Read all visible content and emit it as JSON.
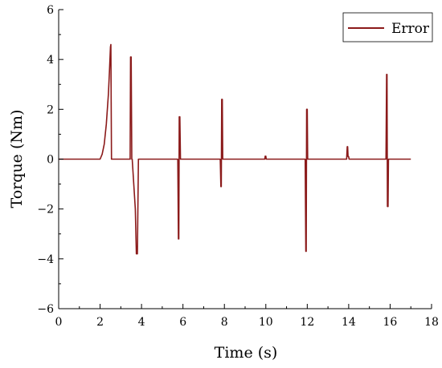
{
  "chart_data": {
    "type": "line",
    "xlabel": "Time (s)",
    "ylabel": "Torque (Nm)",
    "xlim": [
      0,
      18
    ],
    "ylim": [
      -6,
      6
    ],
    "xticks": [
      0,
      2,
      4,
      6,
      8,
      10,
      12,
      14,
      16,
      18
    ],
    "yticks": [
      -6,
      -4,
      -2,
      0,
      2,
      4,
      6
    ],
    "grid": false,
    "legend_position": "top-right",
    "series": [
      {
        "name": "Error",
        "color": "#8b1a1a",
        "x": [
          0,
          2.0,
          2.1,
          2.2,
          2.3,
          2.4,
          2.45,
          2.5,
          2.52,
          2.55,
          3.45,
          3.47,
          3.5,
          3.53,
          3.55,
          3.7,
          3.75,
          3.8,
          3.85,
          5.75,
          5.78,
          5.8,
          5.82,
          5.85,
          5.88,
          5.9,
          7.8,
          7.83,
          7.85,
          7.87,
          7.9,
          7.92,
          7.95,
          9.95,
          9.97,
          10.0,
          10.02,
          10.05,
          11.9,
          11.93,
          11.95,
          11.97,
          12.0,
          12.02,
          12.05,
          13.9,
          13.93,
          13.95,
          13.97,
          14.0,
          14.02,
          14.05,
          15.8,
          15.83,
          15.85,
          15.87,
          15.9,
          15.92,
          15.95,
          17.0
        ],
        "y": [
          0,
          0,
          0.2,
          0.6,
          1.4,
          2.6,
          3.5,
          4.5,
          4.6,
          0,
          0,
          4.1,
          4.1,
          0,
          0,
          -2.0,
          -3.8,
          -3.8,
          0,
          0,
          -3.2,
          -3.2,
          1.7,
          1.7,
          0,
          0,
          0,
          -1.1,
          -1.1,
          2.4,
          2.4,
          0,
          0,
          0,
          0.12,
          0.12,
          0,
          0,
          0,
          -3.7,
          -3.7,
          2.0,
          2.0,
          0,
          0,
          0,
          0.5,
          0.5,
          0.1,
          0.1,
          0,
          0,
          0,
          3.4,
          3.4,
          -1.9,
          -1.9,
          0,
          0,
          0
        ]
      }
    ]
  }
}
